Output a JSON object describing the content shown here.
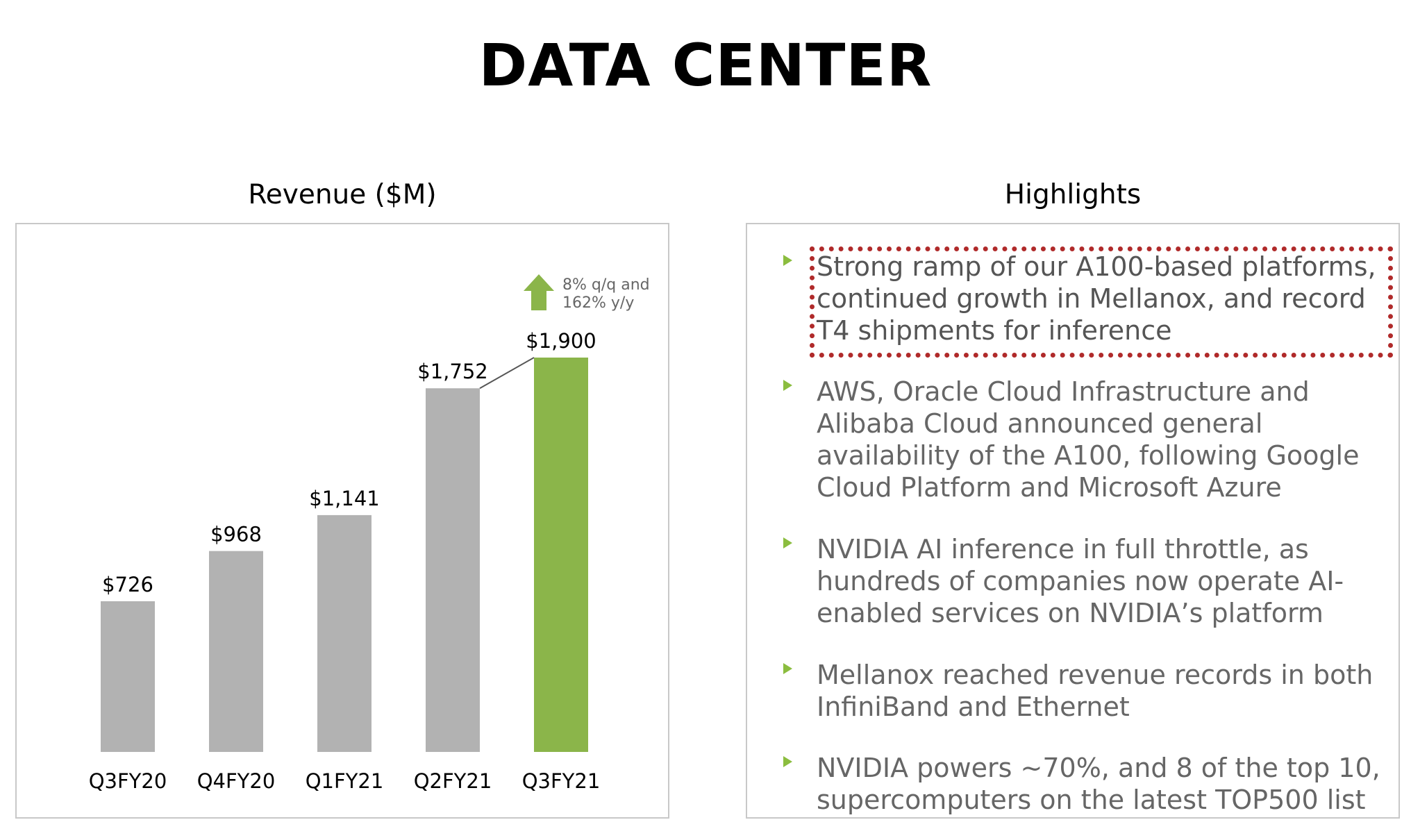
{
  "page": {
    "title": "DATA CENTER"
  },
  "chart_panel": {
    "title": "Revenue ($M)"
  },
  "highlights_panel": {
    "title": "Highlights",
    "items": [
      {
        "text": "Strong ramp of our A100-based platforms, continued growth in Mellanox, and record T4 shipments for inference",
        "highlighted": true
      },
      {
        "text": "AWS, Oracle Cloud Infrastructure and Alibaba Cloud announced general availability of the A100, following Google Cloud Platform and Microsoft Azure",
        "highlighted": false
      },
      {
        "text": "NVIDIA AI inference in full throttle, as hundreds of companies now operate AI-enabled services on NVIDIA’s platform",
        "highlighted": false
      },
      {
        "text": "Mellanox reached revenue records in both InfiniBand and Ethernet",
        "highlighted": false
      },
      {
        "text": "NVIDIA powers ~70%, and 8 of the top 10, supercomputers on the latest TOP500 list",
        "highlighted": false
      }
    ]
  },
  "colors": {
    "bar_default": "#b2b2b2",
    "bar_highlight": "#8bb54a",
    "bullet": "#8bbd3f",
    "focus_box": "#b02a2a",
    "growth_arrow": "#8bb54a"
  },
  "chart_data": {
    "type": "bar",
    "title": "Revenue ($M)",
    "xlabel": "",
    "ylabel": "",
    "categories": [
      "Q3FY20",
      "Q4FY20",
      "Q1FY21",
      "Q2FY21",
      "Q3FY21"
    ],
    "values": [
      726,
      968,
      1141,
      1752,
      1900
    ],
    "value_labels": [
      "$726",
      "$968",
      "$1,141",
      "$1,752",
      "$1,900"
    ],
    "highlight_index": 4,
    "ylim": [
      0,
      1900
    ],
    "grid": false,
    "annotation": {
      "from_index": 3,
      "to_index": 4,
      "lines": [
        "8% q/q and",
        "162% y/y"
      ],
      "icon": "up-arrow-icon"
    }
  }
}
